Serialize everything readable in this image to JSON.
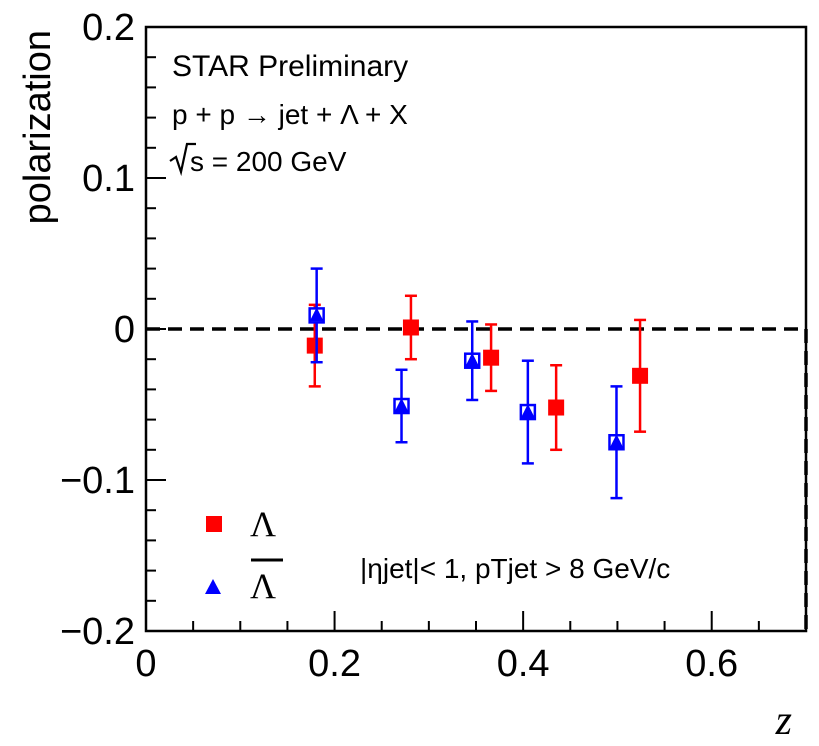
{
  "chart_data": {
    "type": "scatter",
    "title": "STAR Preliminary",
    "xlabel": "z",
    "ylabel": "polarization",
    "xlim": [
      0,
      0.7
    ],
    "ylim": [
      -0.2,
      0.2
    ],
    "x_ticks": [
      0,
      0.2,
      0.4,
      0.6
    ],
    "x_tick_labels": [
      "0",
      "0.2",
      "0.4",
      "0.6"
    ],
    "y_ticks": [
      -0.2,
      -0.1,
      0,
      0.1,
      0.2
    ],
    "y_tick_labels": [
      "−0.2",
      "−0.1",
      "0",
      "0.1",
      "0.2"
    ],
    "reference_line": 0,
    "annotations": {
      "process": "p + p → jet + Λ + X",
      "energy": "s = 200 GeV",
      "cuts": "|ηjet|< 1, pTjet > 8 GeV/c"
    },
    "legend_position": "bottom-left",
    "series": [
      {
        "name": "Λ",
        "legend_label": "Λ",
        "marker": "filled-square",
        "color": "#ff0000",
        "x": [
          0.179,
          0.281,
          0.366,
          0.435,
          0.524
        ],
        "y": [
          -0.011,
          0.001,
          -0.019,
          -0.052,
          -0.031
        ],
        "err": [
          0.027,
          0.021,
          0.022,
          0.028,
          0.037
        ]
      },
      {
        "name": "Λ-bar",
        "legend_label": "Λ",
        "marker": "filled-triangle-in-open-square",
        "color": "#0000ff",
        "x": [
          0.181,
          0.271,
          0.346,
          0.405,
          0.499
        ],
        "y": [
          0.009,
          -0.051,
          -0.021,
          -0.055,
          -0.075
        ],
        "err": [
          0.031,
          0.024,
          0.026,
          0.034,
          0.037
        ]
      }
    ]
  }
}
